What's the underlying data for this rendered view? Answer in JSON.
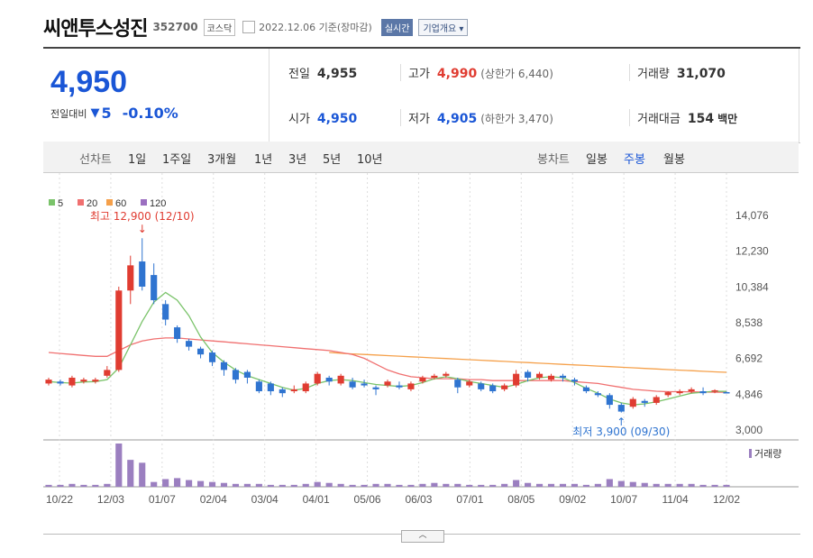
{
  "header": {
    "name": "씨앤투스성진",
    "code": "352700",
    "market": "코스닥",
    "date": "2022.12.06 기준(장마감)",
    "realtime": "실시간",
    "corp": "기업개요 ▾"
  },
  "quote": {
    "price": "4,950",
    "diff_label": "전일대비",
    "diff_arrow": "▼",
    "diff": "5",
    "rate": "-0.10%",
    "prev_label": "전일",
    "prev": "4,955",
    "open_label": "시가",
    "open": "4,950",
    "high_label": "고가",
    "high": "4,990",
    "high_sub": "(상한가 6,440)",
    "low_label": "저가",
    "low": "4,905",
    "low_sub": "(하한가 3,470)",
    "vol_label": "거래량",
    "vol": "31,070",
    "amt_label": "거래대금",
    "amt": "154",
    "amt_unit": "백만"
  },
  "tabs": {
    "line_label": "선차트",
    "line": [
      "1일",
      "1주일",
      "3개월",
      "1년",
      "3년",
      "5년",
      "10년"
    ],
    "candle_label": "봉차트",
    "candle": [
      "일봉",
      "주봉",
      "월봉"
    ],
    "active": "주봉"
  },
  "colors": {
    "up": "#e03c31",
    "down": "#2f74d0",
    "ma5": "#7ac36a",
    "ma20": "#f07070",
    "ma60": "#f5a04a",
    "ma120": "#9b6fc0",
    "vol": "#9b7fc0"
  },
  "chart_data": {
    "type": "candlestick",
    "legend": [
      "5",
      "20",
      "60",
      "120"
    ],
    "yticks": [
      "14,076",
      "12,230",
      "10,384",
      "8,538",
      "6,692",
      "4,846",
      "3,000"
    ],
    "ylim": [
      3000,
      14076
    ],
    "xticks": [
      "10/22",
      "12/03",
      "01/07",
      "02/04",
      "03/04",
      "04/01",
      "05/06",
      "06/03",
      "07/01",
      "08/05",
      "09/02",
      "10/07",
      "11/04",
      "12/02"
    ],
    "annotations": {
      "max": "최고 12,900 (12/10)",
      "min": "최저 3,900 (09/30)"
    },
    "volume_label": "거래량",
    "candles": [
      [
        5400,
        5600,
        5700,
        5300
      ],
      [
        5500,
        5400,
        5600,
        5300
      ],
      [
        5300,
        5700,
        5800,
        5200
      ],
      [
        5500,
        5600,
        5700,
        5400
      ],
      [
        5500,
        5600,
        5700,
        5400
      ],
      [
        5800,
        6100,
        6300,
        5700
      ],
      [
        6100,
        10200,
        10400,
        6000
      ],
      [
        10200,
        11500,
        12000,
        9500
      ],
      [
        11700,
        10400,
        12900,
        10200
      ],
      [
        11000,
        9700,
        11600,
        9500
      ],
      [
        9500,
        8700,
        9700,
        8400
      ],
      [
        8300,
        7700,
        8400,
        7500
      ],
      [
        7600,
        7300,
        7700,
        7100
      ],
      [
        7200,
        6900,
        7300,
        6700
      ],
      [
        7000,
        6500,
        7100,
        6300
      ],
      [
        6500,
        6100,
        6600,
        5800
      ],
      [
        6100,
        5600,
        6200,
        5400
      ],
      [
        6000,
        5700,
        6100,
        5400
      ],
      [
        5500,
        5000,
        5600,
        4900
      ],
      [
        5400,
        5000,
        5500,
        4800
      ],
      [
        5100,
        4900,
        5200,
        4700
      ],
      [
        5000,
        5100,
        5300,
        4900
      ],
      [
        5000,
        5400,
        5500,
        4900
      ],
      [
        5400,
        5900,
        6000,
        5300
      ],
      [
        5700,
        5500,
        5800,
        5300
      ],
      [
        5400,
        5800,
        5900,
        5300
      ],
      [
        5500,
        5200,
        5700,
        5100
      ],
      [
        5400,
        5300,
        5600,
        5200
      ],
      [
        5200,
        5100,
        5300,
        4800
      ],
      [
        5300,
        5500,
        5600,
        5200
      ],
      [
        5300,
        5200,
        5500,
        5100
      ],
      [
        5100,
        5400,
        5500,
        5000
      ],
      [
        5500,
        5700,
        5800,
        5400
      ],
      [
        5700,
        5800,
        5900,
        5600
      ],
      [
        5800,
        5900,
        6000,
        5700
      ],
      [
        5600,
        5200,
        5700,
        4900
      ],
      [
        5300,
        5500,
        5600,
        5200
      ],
      [
        5400,
        5100,
        5500,
        5000
      ],
      [
        5300,
        5000,
        5400,
        4900
      ],
      [
        5100,
        5300,
        5400,
        5000
      ],
      [
        5300,
        5900,
        6100,
        5200
      ],
      [
        6000,
        5700,
        6100,
        5500
      ],
      [
        5700,
        5900,
        6000,
        5600
      ],
      [
        5600,
        5800,
        5900,
        5500
      ],
      [
        5800,
        5700,
        5900,
        5500
      ],
      [
        5600,
        5500,
        5700,
        5300
      ],
      [
        5200,
        5000,
        5300,
        4900
      ],
      [
        4900,
        4800,
        5000,
        4700
      ],
      [
        4800,
        4300,
        4900,
        4100
      ],
      [
        4300,
        3950,
        4400,
        3900
      ],
      [
        4200,
        4600,
        4700,
        4100
      ],
      [
        4500,
        4400,
        4600,
        4200
      ],
      [
        4400,
        4700,
        4800,
        4300
      ],
      [
        4800,
        4950,
        5000,
        4700
      ],
      [
        4900,
        5000,
        5100,
        4800
      ],
      [
        5000,
        5100,
        5200,
        4900
      ],
      [
        5000,
        4900,
        5200,
        4800
      ],
      [
        5000,
        5050,
        5100,
        4900
      ],
      [
        4955,
        4950,
        4990,
        4905
      ]
    ],
    "ma5": [
      5500,
      5450,
      5420,
      5480,
      5500,
      5600,
      6200,
      7400,
      8600,
      9600,
      10100,
      9700,
      8900,
      7800,
      7000,
      6500,
      6100,
      5800,
      5600,
      5400,
      5200,
      5050,
      5150,
      5400,
      5550,
      5600,
      5550,
      5450,
      5350,
      5300,
      5250,
      5300,
      5450,
      5650,
      5750,
      5650,
      5500,
      5400,
      5300,
      5200,
      5350,
      5550,
      5700,
      5750,
      5700,
      5450,
      5150,
      4900,
      4600,
      4400,
      4300,
      4350,
      4450,
      4600,
      4750,
      4900,
      4950,
      5000,
      4990
    ],
    "ma20": [
      7000,
      6950,
      6900,
      6850,
      6800,
      6800,
      7100,
      7400,
      7600,
      7700,
      7750,
      7750,
      7700,
      7650,
      7600,
      7550,
      7500,
      7450,
      7400,
      7350,
      7300,
      7250,
      7200,
      7150,
      7100,
      7000,
      6900,
      6700,
      6400,
      6100,
      5900,
      5750,
      5700,
      5650,
      5650,
      5650,
      5600,
      5600,
      5550,
      5550,
      5550,
      5550,
      5550,
      5550,
      5550,
      5500,
      5450,
      5400,
      5300,
      5200,
      5100,
      5050,
      5000,
      4980,
      4980,
      4970,
      4960,
      4950,
      4950
    ],
    "ma60_start": 24,
    "ma60": [
      7000,
      6960,
      6930,
      6900,
      6870,
      6840,
      6810,
      6780,
      6750,
      6720,
      6690,
      6660,
      6630,
      6600,
      6570,
      6540,
      6510,
      6480,
      6450,
      6420,
      6390,
      6360,
      6330,
      6300,
      6270,
      6240,
      6210,
      6180,
      6150,
      6120,
      6090,
      6060,
      6030,
      6000,
      5980
    ],
    "volume": [
      2,
      2,
      3,
      2,
      2,
      3,
      45,
      28,
      25,
      5,
      8,
      9,
      7,
      6,
      5,
      4,
      3,
      3,
      3,
      2,
      2,
      2,
      3,
      5,
      4,
      3,
      2,
      2,
      3,
      3,
      2,
      2,
      3,
      4,
      3,
      3,
      2,
      2,
      2,
      3,
      7,
      4,
      3,
      3,
      3,
      3,
      2,
      3,
      8,
      6,
      5,
      4,
      3,
      3,
      3,
      3,
      2,
      2,
      2
    ]
  }
}
